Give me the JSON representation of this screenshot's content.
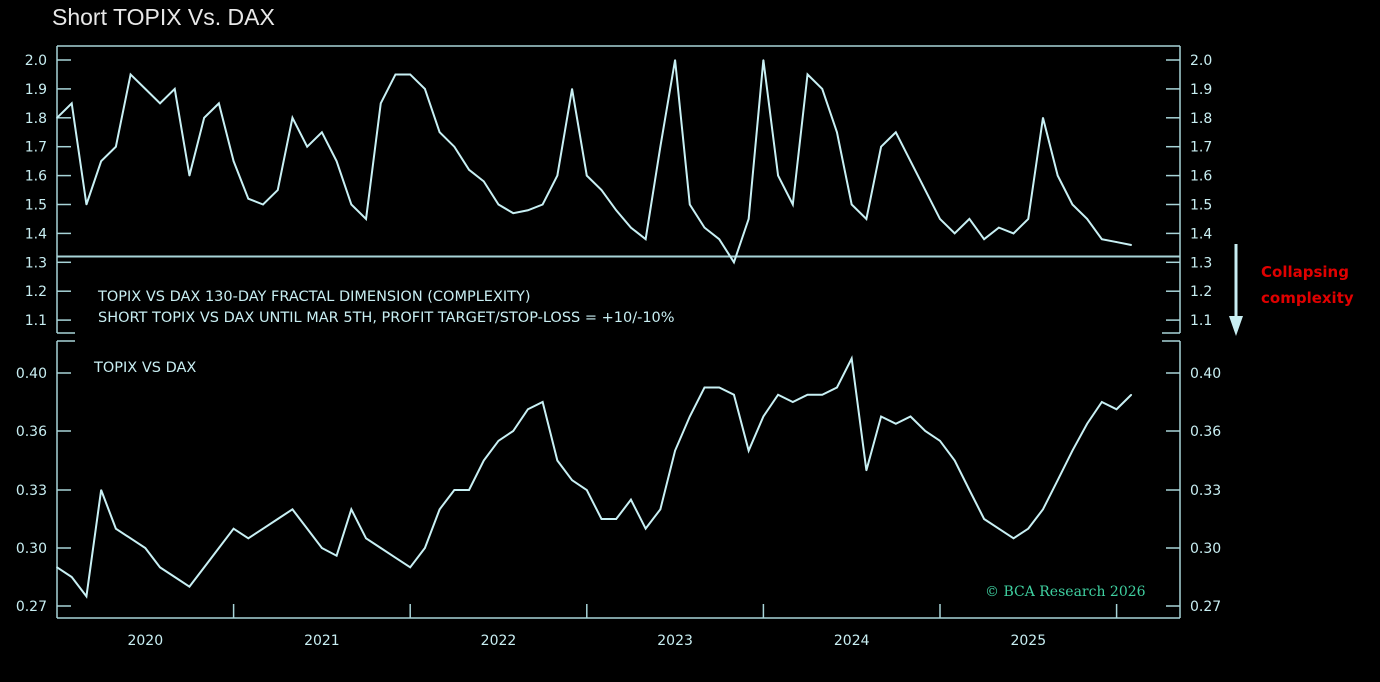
{
  "title": "Short TOPIX Vs. DAX",
  "chart_data": [
    {
      "type": "line",
      "panel": "top",
      "title": "TOPIX VS DAX 130-DAY FRACTAL DIMENSION (COMPLEXITY)",
      "subtitle": "SHORT TOPIX VS DAX UNTIL MAR 5TH, PROFIT TARGET/STOP-LOSS = +10/-10%",
      "ylim": [
        1.05,
        2.05
      ],
      "yticks": [
        "2.0",
        "1.9",
        "1.8",
        "1.7",
        "1.6",
        "1.5",
        "1.4",
        "1.3",
        "1.2",
        "1.1"
      ],
      "ytick_values": [
        2.0,
        1.9,
        1.8,
        1.7,
        1.6,
        1.5,
        1.4,
        1.3,
        1.2,
        1.1
      ],
      "threshold": 1.32,
      "x_start": 2020.0,
      "x_step_years": 0.08333,
      "values": [
        1.8,
        1.85,
        1.5,
        1.65,
        1.7,
        1.95,
        1.9,
        1.85,
        1.9,
        1.6,
        1.8,
        1.85,
        1.65,
        1.52,
        1.5,
        1.55,
        1.8,
        1.7,
        1.75,
        1.65,
        1.5,
        1.45,
        1.85,
        1.95,
        1.95,
        1.9,
        1.75,
        1.7,
        1.62,
        1.58,
        1.5,
        1.47,
        1.48,
        1.5,
        1.6,
        1.9,
        1.6,
        1.55,
        1.48,
        1.42,
        1.38,
        1.7,
        2.0,
        1.5,
        1.42,
        1.38,
        1.3,
        1.45,
        2.0,
        1.6,
        1.5,
        1.95,
        1.9,
        1.75,
        1.5,
        1.45,
        1.7,
        1.75,
        1.65,
        1.55,
        1.45,
        1.4,
        1.45,
        1.38,
        1.42,
        1.4,
        1.45,
        1.8,
        1.6,
        1.5,
        1.45,
        1.38,
        1.37,
        1.36
      ],
      "annotation": {
        "text_lines": [
          "Collapsing",
          "complexity"
        ],
        "color": "#e00000",
        "arrow": "down"
      }
    },
    {
      "type": "line",
      "panel": "bottom",
      "title": "TOPIX VS DAX",
      "yticks": [
        "0.40",
        "0.36",
        "0.33",
        "0.30",
        "0.27"
      ],
      "ytick_values": [
        0.4,
        0.36,
        0.33,
        0.3,
        0.27
      ],
      "x_start": 2020.0,
      "x_step_years": 0.08333,
      "values": [
        0.29,
        0.285,
        0.275,
        0.33,
        0.31,
        0.305,
        0.3,
        0.29,
        0.285,
        0.28,
        0.29,
        0.3,
        0.31,
        0.305,
        0.31,
        0.315,
        0.32,
        0.31,
        0.3,
        0.296,
        0.32,
        0.305,
        0.3,
        0.295,
        0.29,
        0.3,
        0.32,
        0.33,
        0.33,
        0.345,
        0.355,
        0.36,
        0.375,
        0.38,
        0.345,
        0.335,
        0.33,
        0.315,
        0.315,
        0.325,
        0.31,
        0.32,
        0.35,
        0.37,
        0.39,
        0.39,
        0.385,
        0.35,
        0.37,
        0.385,
        0.38,
        0.385,
        0.385,
        0.39,
        0.41,
        0.34,
        0.37,
        0.365,
        0.37,
        0.36,
        0.355,
        0.345,
        0.33,
        0.315,
        0.31,
        0.305,
        0.31,
        0.32,
        0.335,
        0.35,
        0.365,
        0.38,
        0.375,
        0.385
      ]
    }
  ],
  "x_axis": {
    "labels": [
      "2020",
      "2021",
      "2022",
      "2023",
      "2024",
      "2025"
    ],
    "xlim": [
      2020.0,
      2026.4
    ]
  },
  "credit": "© BCA Research 2026",
  "colors": {
    "line": "#c8f0f4",
    "axis": "#a8d4d8",
    "annotation": "#e00000",
    "credit": "#3fd0a0"
  }
}
